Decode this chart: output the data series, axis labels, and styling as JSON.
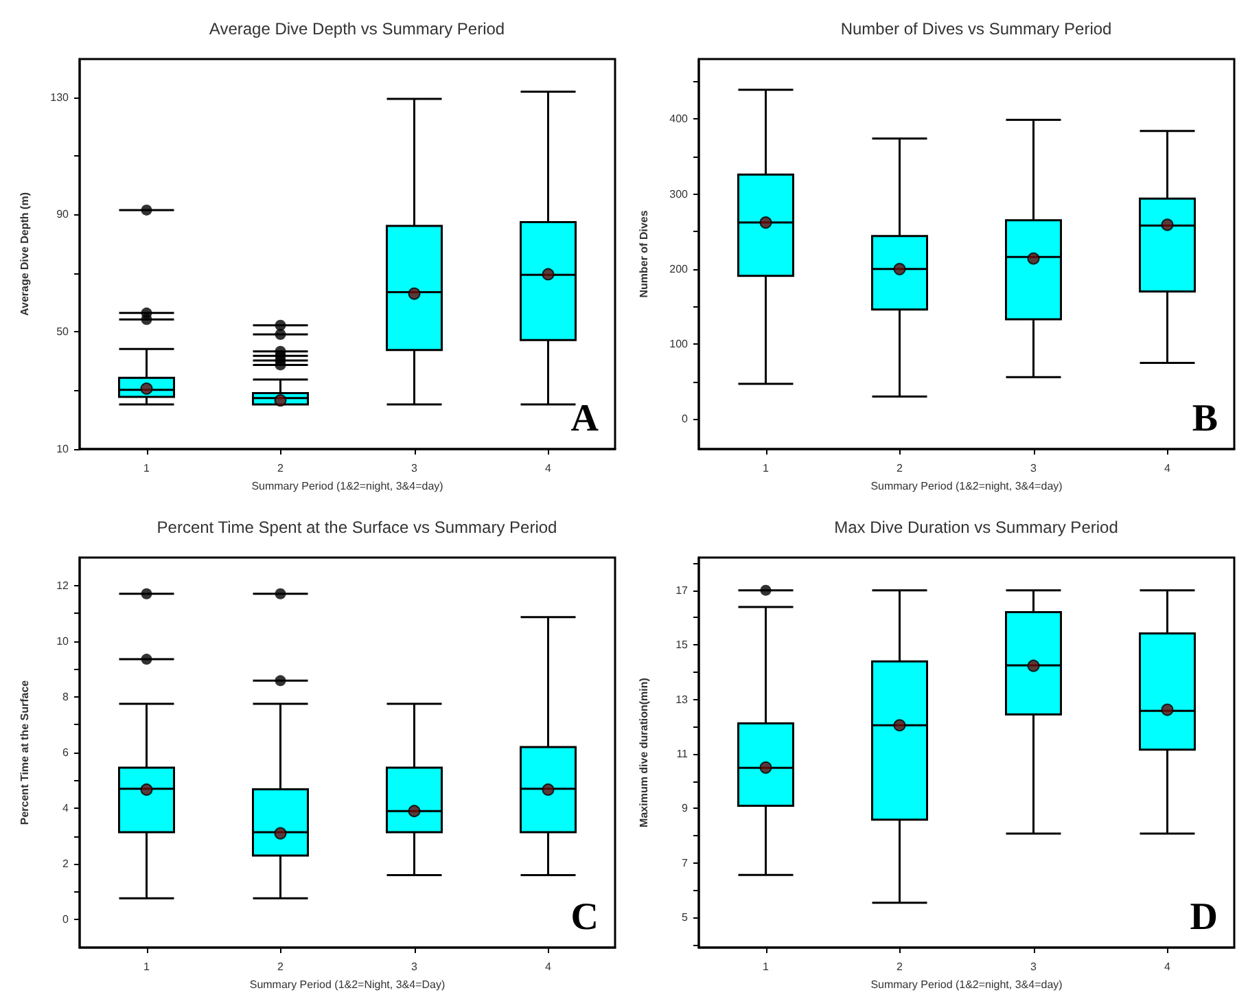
{
  "chart_data": [
    {
      "type": "box",
      "title": "Average Dive Depth vs Summary Period",
      "xlabel": "Summary Period (1&2=night, 3&4=day)",
      "ylabel": "Average Dive Depth (m)",
      "annotations": [
        "A"
      ],
      "categories": [
        "1",
        "2",
        "3",
        "4"
      ],
      "color": "#00ffff",
      "ylim": [
        10,
        143
      ],
      "yticks": [
        10,
        {
          "value": 30,
          "label": null
        },
        50,
        {
          "value": 70,
          "label": null
        },
        90,
        {
          "value": 110,
          "label": null
        },
        130
      ],
      "boxes": [
        {
          "low": 25.2,
          "q1": 27.8,
          "median": 30.2,
          "q3": 34.3,
          "high": 44.1,
          "mean": 30.6,
          "outliers": [
            54.2,
            56.4,
            91.5
          ]
        },
        {
          "low": 25.2,
          "q1": 25.2,
          "median": 27.4,
          "q3": 29.1,
          "high": 33.7,
          "mean": 26.6,
          "outliers": [
            38.7,
            40.2,
            41.8,
            43.3,
            49.1,
            52.2
          ]
        },
        {
          "low": 25.2,
          "q1": 43.8,
          "median": 63.5,
          "q3": 86.1,
          "high": 129.4,
          "mean": 63.0
        },
        {
          "low": 25.2,
          "q1": 47.2,
          "median": 69.4,
          "q3": 87.4,
          "high": 131.9,
          "mean": 69.6
        }
      ]
    },
    {
      "type": "box",
      "title": "Number of Dives vs Summary Period",
      "xlabel": "Summary Period (1&2=night, 3&4=day)",
      "ylabel": "Number of Dives",
      "annotations": [
        "B"
      ],
      "categories": [
        "1",
        "2",
        "3",
        "4"
      ],
      "color": "#00ffff",
      "ylim": [
        -40,
        480
      ],
      "yticks": [
        0,
        {
          "value": 50,
          "label": null
        },
        100,
        {
          "value": 150,
          "label": null
        },
        200,
        {
          "value": 250,
          "label": null
        },
        300,
        {
          "value": 350,
          "label": null
        },
        400,
        {
          "value": 450,
          "label": null
        }
      ],
      "boxes": [
        {
          "low": 47,
          "q1": 191,
          "median": 262,
          "q3": 326,
          "high": 439,
          "mean": 262
        },
        {
          "low": 30,
          "q1": 146,
          "median": 200,
          "q3": 244,
          "high": 374,
          "mean": 200
        },
        {
          "low": 56,
          "q1": 133,
          "median": 216,
          "q3": 265,
          "high": 399,
          "mean": 214
        },
        {
          "low": 75,
          "q1": 170,
          "median": 258,
          "q3": 294,
          "high": 384,
          "mean": 259
        }
      ]
    },
    {
      "type": "box",
      "title": "Percent Time Spent at the Surface vs Summary Period",
      "xlabel": "Summary Period (1&2=Night, 3&4=Day)",
      "ylabel": "Percent Time at the Surface",
      "annotations": [
        "C"
      ],
      "categories": [
        "1",
        "2",
        "3",
        "4"
      ],
      "color": "#00ffff",
      "ylim": [
        -1,
        13
      ],
      "yticks": [
        0,
        {
          "value": 1,
          "label": null
        },
        2,
        {
          "value": 3,
          "label": null
        },
        4,
        {
          "value": 5,
          "label": null
        },
        6,
        {
          "value": 7,
          "label": null
        },
        8,
        {
          "value": 9,
          "label": null
        },
        10,
        {
          "value": 11,
          "label": null
        },
        12
      ],
      "boxes": [
        {
          "low": 0.77,
          "q1": 3.14,
          "median": 4.7,
          "q3": 5.46,
          "high": 7.75,
          "mean": 4.67,
          "outliers": [
            9.35,
            11.7
          ]
        },
        {
          "low": 0.77,
          "q1": 2.3,
          "median": 3.14,
          "q3": 4.68,
          "high": 7.75,
          "mean": 3.1,
          "outliers": [
            8.58,
            11.7
          ]
        },
        {
          "low": 1.6,
          "q1": 3.14,
          "median": 3.9,
          "q3": 5.46,
          "high": 7.75,
          "mean": 3.9
        },
        {
          "low": 1.6,
          "q1": 3.14,
          "median": 4.7,
          "q3": 6.2,
          "high": 10.86,
          "mean": 4.67
        }
      ]
    },
    {
      "type": "box",
      "title": "Max Dive Duration vs Summary Period",
      "xlabel": "Summary Period (1&2=night, 3&4=day)",
      "ylabel": "Maximum dive duration(min)",
      "annotations": [
        "D"
      ],
      "categories": [
        "1",
        "2",
        "3",
        "4"
      ],
      "color": "#00ffff",
      "ylim": [
        3.9,
        18.2
      ],
      "yticks": [
        {
          "value": 4,
          "label": null
        },
        5,
        {
          "value": 6,
          "label": null
        },
        7,
        {
          "value": 8,
          "label": null
        },
        9,
        {
          "value": 10,
          "label": null
        },
        11,
        {
          "value": 12,
          "label": null
        },
        13,
        {
          "value": 14,
          "label": null
        },
        15,
        {
          "value": 16,
          "label": null
        },
        17,
        {
          "value": 18,
          "label": null
        }
      ],
      "boxes": [
        {
          "low": 6.56,
          "q1": 9.1,
          "median": 10.49,
          "q3": 12.12,
          "high": 16.39,
          "mean": 10.5,
          "outliers": [
            17.0
          ]
        },
        {
          "low": 5.54,
          "q1": 8.59,
          "median": 12.05,
          "q3": 14.39,
          "high": 17,
          "mean": 12.05
        },
        {
          "low": 8.08,
          "q1": 12.45,
          "median": 14.25,
          "q3": 16.2,
          "high": 17,
          "mean": 14.23
        },
        {
          "low": 8.08,
          "q1": 11.16,
          "median": 12.58,
          "q3": 15.42,
          "high": 17,
          "mean": 12.62
        }
      ]
    }
  ]
}
